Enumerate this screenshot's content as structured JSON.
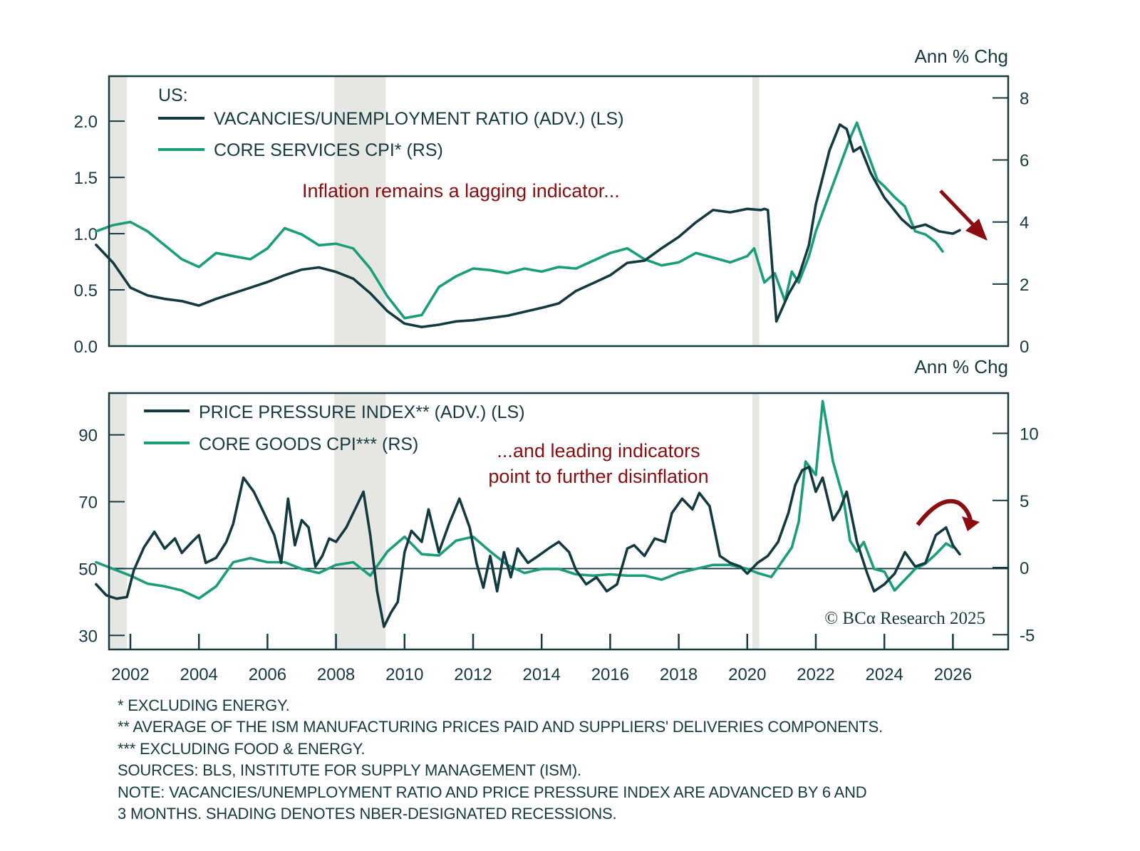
{
  "chart_data": [
    {
      "type": "line",
      "panel": "top",
      "legend_title": "US:",
      "right_axis_title": "Ann % Chg",
      "annotation": "Inflation remains a lagging indicator...",
      "annotation_color": "#8b0d10",
      "arrow": "down-right",
      "x_range": [
        2001.0,
        2027.5
      ],
      "left_ylim": [
        0.0,
        2.4
      ],
      "left_ticks": [
        0.0,
        0.5,
        1.0,
        1.5,
        2.0
      ],
      "left_tick_labels": [
        "0.0",
        "0.5",
        "1.0",
        "1.5",
        "2.0"
      ],
      "right_ylim": [
        0,
        8.7
      ],
      "right_ticks": [
        0,
        2,
        4,
        6,
        8
      ],
      "right_tick_labels": [
        "0",
        "2",
        "4",
        "6",
        "8"
      ],
      "recessions": [
        [
          2001.0,
          2001.9
        ],
        [
          2007.95,
          2009.45
        ],
        [
          2020.15,
          2020.35
        ]
      ],
      "series": [
        {
          "name": "VACANCIES/UNEMPLOYMENT RATIO (ADV.) (LS)",
          "axis": "left",
          "color": "#133a40",
          "x": [
            2001.0,
            2001.5,
            2002.0,
            2002.5,
            2003.0,
            2003.5,
            2004.0,
            2004.5,
            2005.0,
            2005.5,
            2006.0,
            2006.5,
            2007.0,
            2007.5,
            2008.0,
            2008.5,
            2009.0,
            2009.5,
            2010.0,
            2010.5,
            2011.0,
            2011.5,
            2012.0,
            2013.0,
            2014.0,
            2014.5,
            2015.0,
            2015.5,
            2016.0,
            2016.5,
            2017.0,
            2017.5,
            2018.0,
            2018.5,
            2019.0,
            2019.5,
            2020.0,
            2020.4,
            2020.5,
            2020.6,
            2020.85,
            2021.2,
            2021.5,
            2021.8,
            2022.0,
            2022.4,
            2022.7,
            2022.9,
            2023.1,
            2023.3,
            2023.6,
            2024.0,
            2024.5,
            2024.8,
            2025.2,
            2025.6,
            2026.0,
            2026.2
          ],
          "values": [
            0.9,
            0.74,
            0.52,
            0.45,
            0.42,
            0.4,
            0.36,
            0.42,
            0.47,
            0.52,
            0.57,
            0.63,
            0.68,
            0.7,
            0.66,
            0.6,
            0.47,
            0.31,
            0.2,
            0.17,
            0.19,
            0.22,
            0.23,
            0.27,
            0.34,
            0.38,
            0.49,
            0.56,
            0.63,
            0.74,
            0.76,
            0.87,
            0.97,
            1.1,
            1.21,
            1.19,
            1.22,
            1.21,
            1.22,
            1.21,
            0.22,
            0.46,
            0.62,
            0.9,
            1.26,
            1.74,
            1.97,
            1.93,
            1.73,
            1.77,
            1.54,
            1.32,
            1.13,
            1.05,
            1.08,
            1.02,
            1.0,
            1.03
          ]
        },
        {
          "name": "CORE SERVICES CPI* (RS)",
          "axis": "right",
          "color": "#1a9e7a",
          "x": [
            2001.0,
            2001.5,
            2002.0,
            2002.5,
            2003.0,
            2003.5,
            2004.0,
            2004.5,
            2005.0,
            2005.5,
            2006.0,
            2006.5,
            2007.0,
            2007.5,
            2008.0,
            2008.5,
            2009.0,
            2009.5,
            2010.0,
            2010.5,
            2011.0,
            2011.5,
            2012.0,
            2012.5,
            2013.0,
            2013.5,
            2014.0,
            2014.5,
            2015.0,
            2015.5,
            2016.0,
            2016.5,
            2017.0,
            2017.5,
            2018.0,
            2018.5,
            2019.0,
            2019.5,
            2020.0,
            2020.2,
            2020.5,
            2020.8,
            2021.1,
            2021.3,
            2021.5,
            2021.8,
            2022.0,
            2022.4,
            2022.7,
            2023.0,
            2023.2,
            2023.5,
            2023.8,
            2024.0,
            2024.3,
            2024.6,
            2024.9,
            2025.2,
            2025.5,
            2025.7
          ],
          "values": [
            3.7,
            3.9,
            4.0,
            3.7,
            3.25,
            2.8,
            2.55,
            3.0,
            2.9,
            2.8,
            3.15,
            3.8,
            3.6,
            3.25,
            3.3,
            3.15,
            2.5,
            1.6,
            0.9,
            1.0,
            1.9,
            2.25,
            2.5,
            2.45,
            2.35,
            2.5,
            2.4,
            2.55,
            2.5,
            2.75,
            3.0,
            3.15,
            2.8,
            2.6,
            2.7,
            3.0,
            2.85,
            2.7,
            2.9,
            3.15,
            2.05,
            2.35,
            1.45,
            2.4,
            2.05,
            2.9,
            3.7,
            4.9,
            5.8,
            6.7,
            7.2,
            6.25,
            5.35,
            5.15,
            4.8,
            4.5,
            3.7,
            3.6,
            3.35,
            3.05
          ]
        }
      ]
    },
    {
      "type": "line",
      "panel": "bottom",
      "right_axis_title": "Ann % Chg",
      "annotation_lines": [
        "...and leading indicators",
        "point to further disinflation"
      ],
      "annotation_color": "#8b0d10",
      "arrow": "curved-down",
      "copyright": "© BCα Research 2025",
      "x_range": [
        2001.0,
        2027.5
      ],
      "x_ticks": [
        2002,
        2004,
        2006,
        2008,
        2010,
        2012,
        2014,
        2016,
        2018,
        2020,
        2022,
        2024,
        2026
      ],
      "x_tick_labels": [
        "2002",
        "2004",
        "2006",
        "2008",
        "2010",
        "2012",
        "2014",
        "2016",
        "2018",
        "2020",
        "2022",
        "2024",
        "2026"
      ],
      "left_ylim": [
        25.8,
        102.5
      ],
      "left_ticks": [
        30,
        50,
        70,
        90
      ],
      "left_tick_labels": [
        "30",
        "50",
        "70",
        "90"
      ],
      "right_ylim": [
        -6.1,
        13.0
      ],
      "right_ticks": [
        -5,
        0,
        5,
        10
      ],
      "right_tick_labels": [
        "-5",
        "0",
        "5",
        "10"
      ],
      "reference_line": 50,
      "recessions": [
        [
          2001.0,
          2001.9
        ],
        [
          2007.95,
          2009.45
        ],
        [
          2020.15,
          2020.35
        ]
      ],
      "series": [
        {
          "name": "PRICE PRESSURE INDEX** (ADV.) (LS)",
          "axis": "left",
          "color": "#133a40",
          "x": [
            2001.0,
            2001.3,
            2001.6,
            2001.9,
            2002.1,
            2002.4,
            2002.7,
            2003.0,
            2003.3,
            2003.5,
            2003.8,
            2004.0,
            2004.2,
            2004.5,
            2004.8,
            2005.0,
            2005.3,
            2005.6,
            2005.9,
            2006.2,
            2006.4,
            2006.6,
            2006.8,
            2007.0,
            2007.2,
            2007.4,
            2007.6,
            2007.8,
            2008.0,
            2008.3,
            2008.6,
            2008.8,
            2009.0,
            2009.2,
            2009.4,
            2009.6,
            2009.8,
            2010.0,
            2010.2,
            2010.5,
            2010.7,
            2011.0,
            2011.3,
            2011.6,
            2011.9,
            2012.1,
            2012.3,
            2012.5,
            2012.7,
            2012.9,
            2013.1,
            2013.3,
            2013.6,
            2013.9,
            2014.2,
            2014.5,
            2014.8,
            2015.0,
            2015.3,
            2015.6,
            2015.9,
            2016.2,
            2016.5,
            2016.7,
            2017.0,
            2017.3,
            2017.6,
            2017.8,
            2018.1,
            2018.4,
            2018.6,
            2018.9,
            2019.2,
            2019.5,
            2019.8,
            2020.0,
            2020.3,
            2020.6,
            2020.9,
            2021.2,
            2021.4,
            2021.6,
            2021.8,
            2022.0,
            2022.2,
            2022.5,
            2022.7,
            2022.9,
            2023.2,
            2023.5,
            2023.7,
            2024.0,
            2024.3,
            2024.6,
            2024.9,
            2025.2,
            2025.5,
            2025.8,
            2026.0,
            2026.2
          ],
          "values": [
            45.3,
            42,
            41,
            41.5,
            49.5,
            56.4,
            61,
            56,
            59,
            54.7,
            58,
            60,
            51.7,
            53.2,
            58,
            63.4,
            77.2,
            73,
            66.6,
            60,
            51.7,
            70.9,
            57,
            64.5,
            62.3,
            50.6,
            53.8,
            59,
            58,
            62.3,
            68.7,
            73,
            60,
            43.2,
            32.6,
            36.8,
            40,
            54.9,
            61.3,
            58,
            67.7,
            54.9,
            63.4,
            70.9,
            62.3,
            51.7,
            44.3,
            53.8,
            43.2,
            54.9,
            47.4,
            56,
            51.7,
            53.8,
            56,
            58,
            54.9,
            49.6,
            45.3,
            47.4,
            43.2,
            45.3,
            56,
            57,
            53.8,
            59,
            58,
            66.6,
            70.9,
            67.7,
            72.6,
            68.7,
            53.8,
            51.7,
            50.6,
            48.5,
            51.7,
            53.8,
            58,
            66.6,
            75,
            79.4,
            80.4,
            73,
            77.2,
            64.5,
            67.7,
            73,
            58,
            48.5,
            43.2,
            45.3,
            48.5,
            54.9,
            50.6,
            51.7,
            60,
            62.3,
            57,
            54.3
          ]
        },
        {
          "name": "CORE GOODS CPI*** (RS)",
          "axis": "right",
          "color": "#1a9e7a",
          "x": [
            2001.0,
            2001.5,
            2002.0,
            2002.5,
            2003.0,
            2003.5,
            2004.0,
            2004.5,
            2005.0,
            2005.5,
            2006.0,
            2006.5,
            2007.0,
            2007.5,
            2008.0,
            2008.5,
            2009.0,
            2009.5,
            2010.0,
            2010.5,
            2011.0,
            2011.5,
            2012.0,
            2012.5,
            2013.0,
            2013.5,
            2014.0,
            2014.5,
            2015.0,
            2015.5,
            2016.0,
            2016.5,
            2017.0,
            2017.5,
            2018.0,
            2018.5,
            2019.0,
            2019.5,
            2020.0,
            2020.3,
            2020.7,
            2021.0,
            2021.3,
            2021.5,
            2021.7,
            2022.0,
            2022.2,
            2022.5,
            2022.8,
            2023.0,
            2023.2,
            2023.4,
            2023.7,
            2024.0,
            2024.3,
            2024.6,
            2024.9,
            2025.2,
            2025.5,
            2025.8,
            2026.0
          ],
          "values": [
            0.4,
            -0.1,
            -0.6,
            -1.2,
            -1.4,
            -1.7,
            -2.3,
            -1.4,
            0.4,
            0.7,
            0.4,
            0.4,
            -0.1,
            -0.4,
            0.2,
            0.4,
            -0.6,
            1.2,
            2.3,
            1.0,
            0.9,
            2.0,
            2.3,
            1.2,
            0.2,
            -0.4,
            -0.1,
            -0.1,
            -0.5,
            -0.6,
            -0.5,
            -0.6,
            -0.6,
            -0.9,
            -0.4,
            -0.1,
            0.2,
            0.2,
            -0.1,
            -0.4,
            -0.7,
            0.4,
            1.5,
            3.4,
            7.9,
            6.9,
            12.4,
            7.9,
            5.2,
            2.0,
            1.2,
            1.9,
            -0.1,
            -0.3,
            -1.7,
            -0.9,
            -0.1,
            0.3,
            1.0,
            1.8,
            1.5
          ]
        }
      ]
    }
  ],
  "footnotes": [
    "* EXCLUDING ENERGY.",
    "** AVERAGE OF THE ISM MANUFACTURING PRICES PAID AND SUPPLIERS' DELIVERIES COMPONENTS.",
    "*** EXCLUDING FOOD & ENERGY.",
    "SOURCES: BLS, INSTITUTE FOR SUPPLY MANAGEMENT (ISM).",
    "NOTE: VACANCIES/UNEMPLOYMENT RATIO AND PRICE PRESSURE INDEX ARE ADVANCED BY 6 AND",
    "3 MONTHS. SHADING DENOTES NBER-DESIGNATED RECESSIONS."
  ]
}
